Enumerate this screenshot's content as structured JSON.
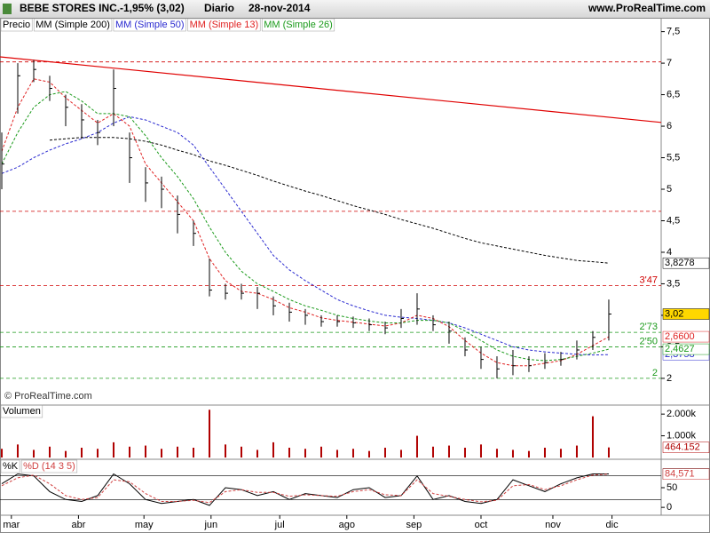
{
  "header": {
    "title": "BEBE STORES INC.",
    "change": "-1,95% (3,02)",
    "period": "Diario",
    "date": "28-nov-2014",
    "source": "www.ProRealTime.com",
    "watermark": "© ProRealTime.com"
  },
  "chart_data": [
    {
      "type": "candlestick",
      "x": [
        0,
        5,
        10,
        15,
        20,
        25,
        30,
        35,
        40,
        45,
        50,
        55,
        60,
        65,
        70,
        75,
        80,
        85,
        90,
        95,
        100,
        105,
        110,
        115,
        120,
        125,
        130,
        135,
        140,
        145,
        150,
        155,
        160,
        165,
        170,
        175,
        180,
        185,
        190
      ],
      "xlim": [
        -0.56,
        206.4
      ],
      "ylim": [
        1.59,
        7.72
      ],
      "yticks": [
        {
          "value": 7.5,
          "label": "7,5"
        },
        7,
        {
          "value": 6.5,
          "label": "6,5"
        },
        6,
        {
          "value": 5.5,
          "label": "5,5"
        },
        5,
        {
          "value": 4.5,
          "label": "4,5"
        },
        4,
        {
          "value": 3.5,
          "label": "3,5"
        },
        3,
        {
          "value": 2.5,
          "label": "2,5"
        },
        2
      ],
      "price": {
        "name": "Precio",
        "color": "#000000",
        "tag_fill": "#ffd700",
        "high": [
          5.9,
          7.0,
          7.05,
          6.8,
          6.5,
          6.35,
          6.1,
          6.9,
          5.9,
          5.35,
          5.2,
          4.9,
          4.5,
          3.9,
          3.5,
          3.5,
          3.45,
          3.3,
          3.2,
          3.1,
          3.0,
          3.0,
          2.98,
          2.95,
          2.9,
          3.1,
          3.35,
          3.0,
          2.9,
          2.65,
          2.5,
          2.35,
          2.45,
          2.35,
          2.4,
          2.42,
          2.6,
          2.75,
          3.25
        ],
        "low": [
          5.0,
          6.2,
          6.7,
          6.4,
          6.0,
          5.8,
          5.7,
          6.0,
          5.1,
          4.8,
          4.7,
          4.3,
          4.1,
          3.3,
          3.25,
          3.25,
          3.1,
          3.0,
          2.9,
          2.85,
          2.82,
          2.82,
          2.8,
          2.75,
          2.7,
          2.8,
          2.85,
          2.75,
          2.55,
          2.35,
          2.15,
          2.0,
          2.05,
          2.1,
          2.15,
          2.2,
          2.3,
          2.45,
          2.6
        ],
        "values": [
          5.4,
          6.8,
          6.9,
          6.6,
          6.3,
          6.1,
          5.9,
          6.6,
          5.5,
          5.1,
          5.0,
          4.6,
          4.3,
          3.4,
          3.35,
          3.35,
          3.35,
          3.15,
          3.05,
          3.0,
          2.9,
          2.9,
          2.88,
          2.85,
          2.8,
          2.95,
          3.1,
          2.85,
          2.75,
          2.45,
          2.3,
          2.15,
          2.2,
          2.2,
          2.25,
          2.3,
          2.45,
          2.65,
          3.02
        ],
        "value_labels": [
          null,
          null,
          null,
          null,
          null,
          null,
          null,
          null,
          null,
          null,
          null,
          null,
          null,
          null,
          null,
          null,
          null,
          null,
          null,
          null,
          null,
          null,
          null,
          null,
          null,
          null,
          null,
          null,
          null,
          null,
          null,
          null,
          null,
          null,
          null,
          null,
          null,
          null,
          "3,02"
        ]
      },
      "series": [
        {
          "name": "MM (Simple 200)",
          "color": "#000000",
          "values": [
            null,
            null,
            null,
            5.78,
            5.8,
            5.82,
            5.82,
            5.82,
            5.8,
            5.76,
            5.7,
            5.62,
            5.55,
            5.45,
            5.38,
            5.3,
            5.22,
            5.13,
            5.05,
            4.97,
            4.9,
            4.82,
            4.74,
            4.67,
            4.6,
            4.52,
            4.45,
            4.38,
            4.3,
            4.22,
            4.15,
            4.1,
            4.05,
            4.0,
            3.95,
            3.91,
            3.87,
            3.85,
            3.8278
          ],
          "value_labels": [
            null,
            null,
            null,
            null,
            null,
            null,
            null,
            null,
            null,
            null,
            null,
            null,
            null,
            null,
            null,
            null,
            null,
            null,
            null,
            null,
            null,
            null,
            null,
            null,
            null,
            null,
            null,
            null,
            null,
            null,
            null,
            null,
            null,
            null,
            null,
            null,
            null,
            null,
            "3,8278"
          ]
        },
        {
          "name": "MM (Simple 50)",
          "color": "#2a2ad0",
          "values": [
            5.25,
            5.35,
            5.5,
            5.62,
            5.72,
            5.8,
            5.9,
            6.05,
            6.15,
            6.1,
            6.0,
            5.9,
            5.7,
            5.35,
            5.0,
            4.65,
            4.3,
            3.95,
            3.72,
            3.55,
            3.4,
            3.25,
            3.15,
            3.07,
            3.0,
            2.97,
            2.95,
            2.92,
            2.88,
            2.8,
            2.7,
            2.6,
            2.5,
            2.45,
            2.42,
            2.4,
            2.38,
            2.37,
            2.3758
          ],
          "value_labels": [
            null,
            null,
            null,
            null,
            null,
            null,
            null,
            null,
            null,
            null,
            null,
            null,
            null,
            null,
            null,
            null,
            null,
            null,
            null,
            null,
            null,
            null,
            null,
            null,
            null,
            null,
            null,
            null,
            null,
            null,
            null,
            null,
            null,
            null,
            null,
            null,
            null,
            null,
            "2,3758"
          ]
        },
        {
          "name": "MM (Simple 13)",
          "color": "#e02020",
          "values": [
            5.6,
            6.3,
            6.75,
            6.7,
            6.45,
            6.25,
            6.05,
            6.2,
            6.0,
            5.4,
            5.1,
            4.8,
            4.5,
            3.9,
            3.55,
            3.38,
            3.35,
            3.25,
            3.12,
            3.05,
            2.96,
            2.92,
            2.89,
            2.86,
            2.83,
            2.88,
            3.0,
            2.95,
            2.82,
            2.6,
            2.4,
            2.25,
            2.2,
            2.2,
            2.24,
            2.28,
            2.38,
            2.52,
            2.66
          ],
          "value_labels": [
            null,
            null,
            null,
            null,
            null,
            null,
            null,
            null,
            null,
            null,
            null,
            null,
            null,
            null,
            null,
            null,
            null,
            null,
            null,
            null,
            null,
            null,
            null,
            null,
            null,
            null,
            null,
            null,
            null,
            null,
            null,
            null,
            null,
            null,
            null,
            null,
            null,
            null,
            "2,6600"
          ]
        },
        {
          "name": "MM (Simple 26)",
          "color": "#1a9a1a",
          "values": [
            5.4,
            5.9,
            6.3,
            6.5,
            6.55,
            6.4,
            6.2,
            6.2,
            6.15,
            5.85,
            5.5,
            5.2,
            4.85,
            4.4,
            4.0,
            3.7,
            3.5,
            3.38,
            3.25,
            3.15,
            3.08,
            3.0,
            2.95,
            2.91,
            2.88,
            2.88,
            2.92,
            2.92,
            2.88,
            2.75,
            2.6,
            2.45,
            2.35,
            2.3,
            2.28,
            2.3,
            2.35,
            2.4,
            2.4627
          ],
          "value_labels": [
            null,
            null,
            null,
            null,
            null,
            null,
            null,
            null,
            null,
            null,
            null,
            null,
            null,
            null,
            null,
            null,
            null,
            null,
            null,
            null,
            null,
            null,
            null,
            null,
            null,
            null,
            null,
            null,
            null,
            null,
            null,
            null,
            null,
            null,
            null,
            null,
            null,
            null,
            "2,4627"
          ]
        }
      ],
      "levels": [
        {
          "value": 7.02,
          "color": "#d00000"
        },
        {
          "value": 4.65,
          "color": "#d00000"
        },
        {
          "value": 3.47,
          "label": "3'47",
          "color": "#d00000"
        },
        {
          "value": 2.73,
          "label": "2'73",
          "color": "#1a9a1a"
        },
        {
          "value": 2.5,
          "label": "2'50",
          "color": "#1a9a1a"
        },
        {
          "value": 2,
          "label": "2",
          "color": "#1a9a1a"
        }
      ],
      "trendline": {
        "x": [
          -0.56,
          206.4
        ],
        "values": [
          7.1,
          6.06
        ],
        "color": "#e00000"
      }
    },
    {
      "type": "bar",
      "title": "Volumen",
      "x": [
        0,
        5,
        10,
        15,
        20,
        25,
        30,
        35,
        40,
        45,
        50,
        55,
        60,
        65,
        70,
        75,
        80,
        85,
        90,
        95,
        100,
        105,
        110,
        115,
        120,
        125,
        130,
        135,
        140,
        145,
        150,
        155,
        160,
        165,
        170,
        175,
        180,
        185,
        190
      ],
      "xlim": [
        -0.56,
        206.4
      ],
      "ylim": [
        0,
        2375
      ],
      "yticks": [
        {
          "value": 2000,
          "label": "2.000k"
        },
        {
          "value": 1000,
          "label": "1.000k"
        }
      ],
      "color": "#b00000",
      "values": [
        400,
        600,
        350,
        500,
        300,
        450,
        400,
        700,
        500,
        550,
        400,
        500,
        450,
        2200,
        600,
        500,
        350,
        700,
        450,
        400,
        500,
        350,
        400,
        300,
        450,
        350,
        1000,
        500,
        550,
        450,
        600,
        400,
        350,
        300,
        450,
        400,
        550,
        1900,
        464.152
      ]
    },
    {
      "type": "line",
      "x": [
        0,
        5,
        10,
        15,
        20,
        25,
        30,
        35,
        40,
        45,
        50,
        55,
        60,
        65,
        70,
        75,
        80,
        85,
        90,
        95,
        100,
        105,
        110,
        115,
        120,
        125,
        130,
        135,
        140,
        145,
        150,
        155,
        160,
        165,
        170,
        175,
        180,
        185,
        190
      ],
      "xlim": [
        -0.56,
        206.4
      ],
      "ylim": [
        -20,
        120
      ],
      "yticks": [
        50,
        0
      ],
      "levels": [
        80,
        20
      ],
      "xticks": [
        {
          "value": 3,
          "label": "mar"
        },
        {
          "value": 24,
          "label": "abr"
        },
        {
          "value": 44.5,
          "label": "may"
        },
        {
          "value": 65.5,
          "label": "jun"
        },
        {
          "value": 87,
          "label": "jul"
        },
        {
          "value": 108,
          "label": "ago"
        },
        {
          "value": 129,
          "label": "sep"
        },
        {
          "value": 150,
          "label": "oct"
        },
        {
          "value": 172.5,
          "label": "nov"
        },
        {
          "value": 191,
          "label": "dic"
        }
      ],
      "series": [
        {
          "name": "%K",
          "color": "#000000",
          "values": [
            60,
            85,
            80,
            40,
            20,
            15,
            30,
            85,
            60,
            20,
            10,
            15,
            20,
            5,
            50,
            45,
            30,
            40,
            20,
            35,
            30,
            25,
            45,
            50,
            25,
            30,
            80,
            20,
            30,
            15,
            10,
            20,
            70,
            55,
            40,
            60,
            75,
            85,
            85.023
          ],
          "value_labels": [
            null,
            null,
            null,
            null,
            null,
            null,
            null,
            null,
            null,
            null,
            null,
            null,
            null,
            null,
            null,
            null,
            null,
            null,
            null,
            null,
            null,
            null,
            null,
            null,
            null,
            null,
            null,
            null,
            null,
            null,
            null,
            null,
            null,
            null,
            null,
            null,
            null,
            null,
            "85,023"
          ]
        },
        {
          "name": "%D (14 3 5)",
          "color": "#d04040",
          "values": [
            55,
            75,
            82,
            60,
            30,
            20,
            25,
            70,
            65,
            35,
            15,
            15,
            18,
            12,
            40,
            45,
            38,
            38,
            28,
            32,
            30,
            28,
            40,
            45,
            32,
            30,
            70,
            35,
            28,
            20,
            14,
            18,
            55,
            58,
            45,
            55,
            70,
            82,
            84.571
          ],
          "value_labels": [
            null,
            null,
            null,
            null,
            null,
            null,
            null,
            null,
            null,
            null,
            null,
            null,
            null,
            null,
            null,
            null,
            null,
            null,
            null,
            null,
            null,
            null,
            null,
            null,
            null,
            null,
            null,
            null,
            null,
            null,
            null,
            null,
            null,
            null,
            null,
            null,
            null,
            null,
            "84,571"
          ]
        }
      ]
    }
  ]
}
